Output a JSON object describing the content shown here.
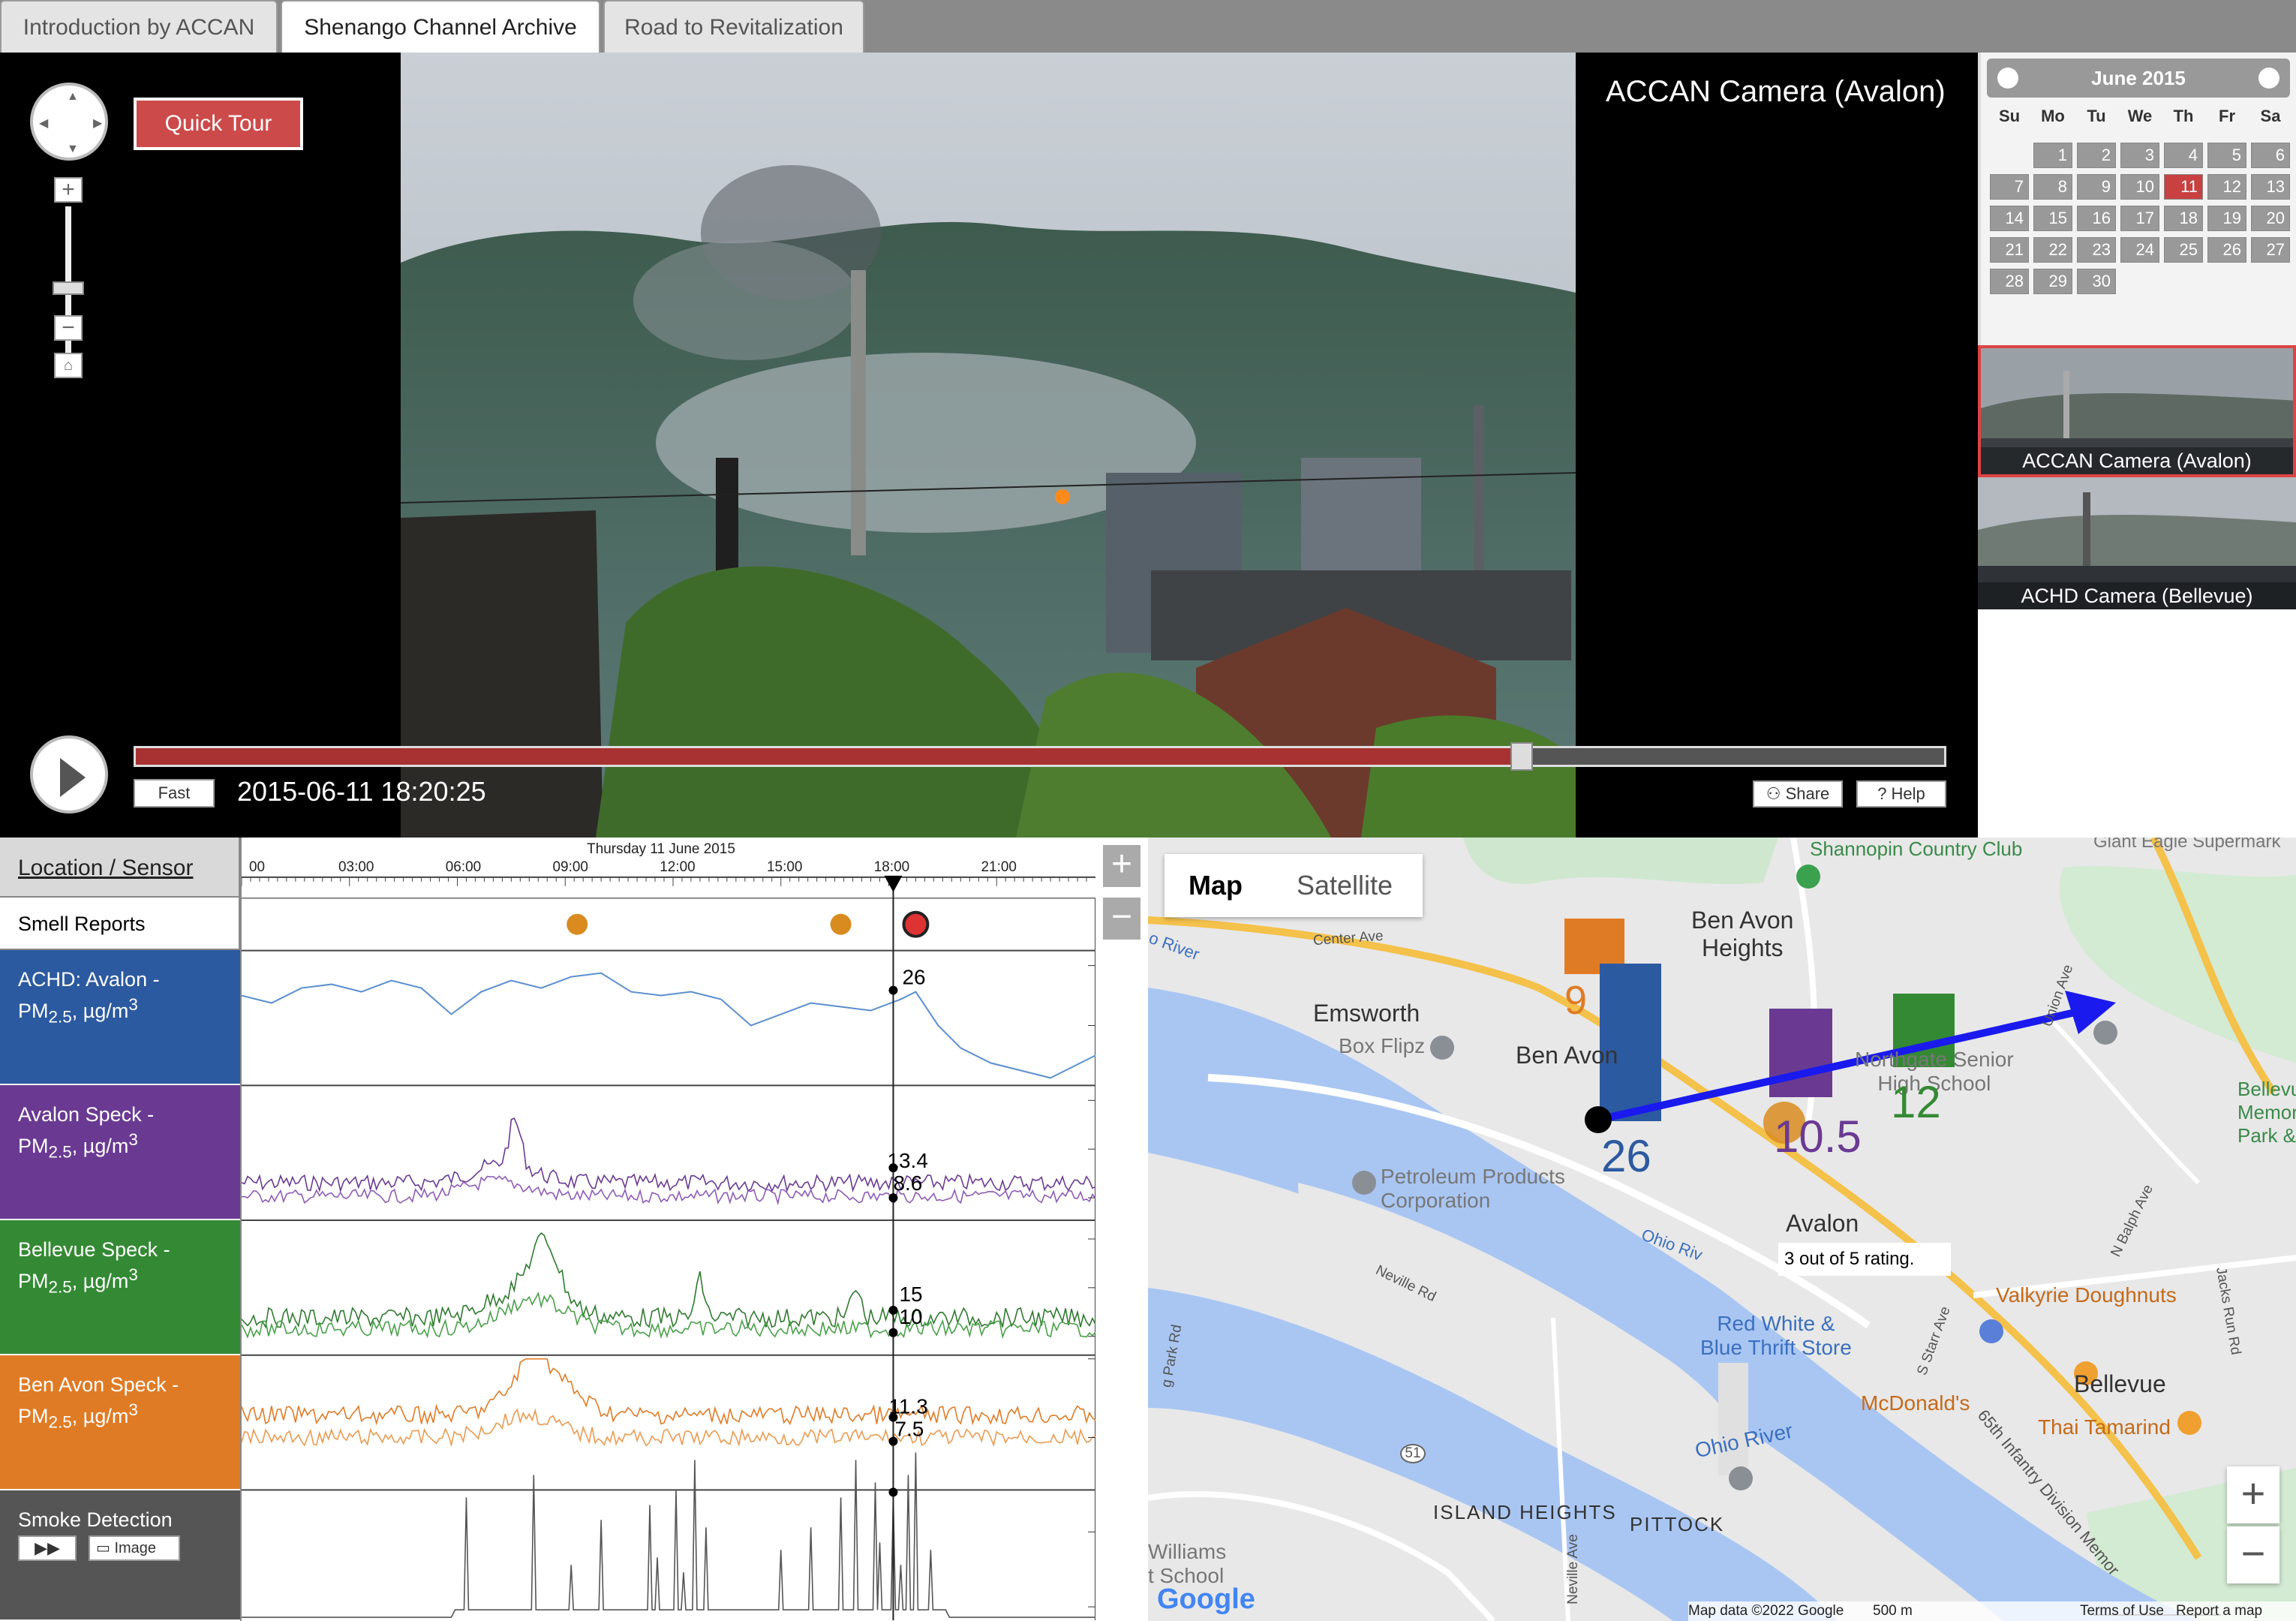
{
  "tabs": [
    {
      "label": "Introduction by ACCAN",
      "active": false
    },
    {
      "label": "Shenango Channel Archive",
      "active": true
    },
    {
      "label": "Road to Revitalization",
      "active": false
    }
  ],
  "viewer": {
    "camera_title": "ACCAN Camera (Avalon)",
    "quick_tour_label": "Quick Tour",
    "speed_label": "Fast",
    "timestamp": "2015-06-11 18:20:25",
    "share_label": "Share",
    "help_label": "Help",
    "progress": 0.766
  },
  "calendar": {
    "month_label": "June 2015",
    "dow": [
      "Su",
      "Mo",
      "Tu",
      "We",
      "Th",
      "Fr",
      "Sa"
    ],
    "first_weekday": 1,
    "days": 30,
    "selected_day": 11
  },
  "cameras": [
    {
      "label": "ACCAN Camera (Avalon)",
      "selected": true
    },
    {
      "label": "ACHD Camera (Bellevue)",
      "selected": false
    }
  ],
  "panel": {
    "header": "Location / Sensor",
    "date_label": "Thursday 11 June 2015",
    "time_ticks": [
      "00",
      "03:00",
      "06:00",
      "09:00",
      "12:00",
      "15:00",
      "18:00",
      "21:00"
    ],
    "rows": [
      {
        "name": "smell",
        "label": "Smell Reports",
        "color": "#ffffff",
        "text_color": "#000000"
      },
      {
        "name": "achd",
        "label_main": "ACHD: Avalon -",
        "label_unit": "PM",
        "sub": "2.5",
        "unit_rest": ", µg/m",
        "sup": "3",
        "color": "#2c5aa0"
      },
      {
        "name": "avalon",
        "label_main": "Avalon Speck -",
        "label_unit": "PM",
        "sub": "2.5",
        "unit_rest": ", µg/m",
        "sup": "3",
        "color": "#6a3a93"
      },
      {
        "name": "bellevue",
        "label_main": "Bellevue Speck -",
        "label_unit": "PM",
        "sub": "2.5",
        "unit_rest": ", µg/m",
        "sup": "3",
        "color": "#348a34"
      },
      {
        "name": "benavon",
        "label_main": "Ben Avon Speck -",
        "label_unit": "PM",
        "sub": "2.5",
        "unit_rest": ", µg/m",
        "sup": "3",
        "color": "#e07b25"
      },
      {
        "name": "smoke",
        "label": "Smoke Detection",
        "color": "#555555",
        "image_label": "Image"
      }
    ],
    "readouts": {
      "achd": "26",
      "avalon_a": "13.4",
      "avalon_b": "8.6",
      "bellevue_a": "15",
      "bellevue_b": "10",
      "benavon_a": "11.3",
      "benavon_b": "7.5"
    },
    "y_ticks": {
      "achd": [
        "30",
        "20"
      ],
      "avalon": [
        "30",
        "20",
        "10"
      ],
      "bellevue": [
        "30",
        "20",
        "10"
      ],
      "benavon": [
        "20",
        "10"
      ],
      "smoke": [
        "200",
        "0"
      ]
    },
    "plus_label": "+",
    "minus_label": "−"
  },
  "map": {
    "map_label": "Map",
    "satellite_label": "Satellite",
    "zoom_in": "+",
    "zoom_out": "−",
    "labels": {
      "shannopin": "Shannopin Country Club",
      "giant_eagle": "Giant Eagle Supermark",
      "ben_avon_heights": "Ben Avon\nHeights",
      "emsworth": "Emsworth",
      "box_flipz": "Box Flipz",
      "ben_avon": "Ben Avon",
      "northgate": "Northgate Senior\nHigh School",
      "bellevue_mem": "Bellevu\nMemori\nPark &",
      "petroleum": "Petroleum Products\nCorporation",
      "avalon": "Avalon",
      "red_white": "Red White &\nBlue Thrift Store",
      "valkyrie": "Valkyrie Doughnuts",
      "bellevue": "Bellevue",
      "mcdonalds": "McDonald's",
      "thai": "Thai Tamarind",
      "ohio_river": "Ohio River",
      "ohio_river2": "Ohio Riv",
      "island_heights": "ISLAND HEIGHTS",
      "pittock": "PITTOCK",
      "williams": "Williams\nt School",
      "center_ave": "Center Ave",
      "neville_rd": "Neville Rd",
      "neville_ave": "Neville Ave",
      "union_ave": "Union Ave",
      "n_balph": "N Balph Ave",
      "jacks_run": "Jacks Run Rd",
      "s_starr": "S Starr Ave",
      "sixty_fifth": "65th Infantry Division Memor",
      "park_rd": "g Park Rd",
      "route51": "51",
      "river_left": "o River"
    },
    "value_labels": {
      "benavon": "9",
      "achd": "26",
      "avalon": "10.5",
      "bellevue": "12"
    },
    "rating_popup": "3 out of 5 rating.",
    "footer": {
      "data": "Map data ©2022 Google",
      "scale": "500 m",
      "terms": "Terms of Use",
      "report": "Report a map error"
    },
    "google": "Google"
  }
}
